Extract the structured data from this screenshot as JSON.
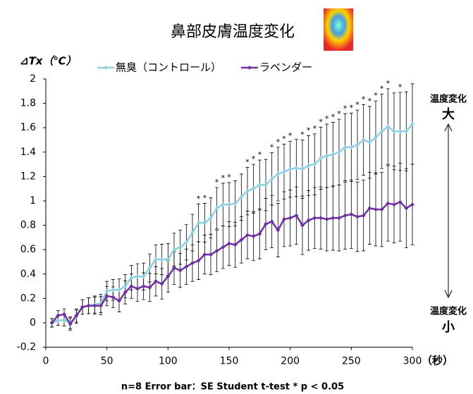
{
  "chart_data": {
    "type": "line",
    "title": "鼻部皮膚温度変化",
    "y_label": "⊿Tx（℃）",
    "x_unit": "（秒）",
    "footnote": "n=8  Error bar：SE    Student t-test * p < 0.05",
    "side_labels": {
      "top": "温度変化",
      "top_big": "大",
      "bottom": "温度変化",
      "bottom_big": "小"
    },
    "x": [
      5,
      10,
      15,
      20,
      25,
      30,
      35,
      40,
      45,
      50,
      55,
      60,
      65,
      70,
      75,
      80,
      85,
      90,
      95,
      100,
      105,
      110,
      115,
      120,
      125,
      130,
      135,
      140,
      145,
      150,
      155,
      160,
      165,
      170,
      175,
      180,
      185,
      190,
      195,
      200,
      205,
      210,
      215,
      220,
      225,
      230,
      235,
      240,
      245,
      250,
      255,
      260,
      265,
      270,
      275,
      280,
      285,
      290,
      295,
      300
    ],
    "series": [
      {
        "name": "無臭（コントロール）",
        "color": "#8fd0e0",
        "values": [
          0,
          0.02,
          0.02,
          0,
          0.05,
          0.13,
          0.14,
          0.15,
          0.16,
          0.26,
          0.27,
          0.27,
          0.3,
          0.37,
          0.38,
          0.38,
          0.45,
          0.52,
          0.52,
          0.52,
          0.6,
          0.62,
          0.66,
          0.74,
          0.82,
          0.82,
          0.86,
          0.94,
          0.97,
          0.97,
          0.98,
          1.03,
          1.08,
          1.1,
          1.13,
          1.13,
          1.18,
          1.22,
          1.24,
          1.26,
          1.27,
          1.26,
          1.29,
          1.3,
          1.35,
          1.37,
          1.38,
          1.4,
          1.44,
          1.44,
          1.46,
          1.5,
          1.48,
          1.52,
          1.57,
          1.61,
          1.57,
          1.57,
          1.57,
          1.63
        ],
        "errors": [
          0.035,
          0.04,
          0.045,
          0.05,
          0.055,
          0.06,
          0.065,
          0.07,
          0.075,
          0.08,
          0.085,
          0.09,
          0.095,
          0.1,
          0.105,
          0.11,
          0.115,
          0.12,
          0.125,
          0.13,
          0.135,
          0.14,
          0.145,
          0.15,
          0.155,
          0.16,
          0.165,
          0.17,
          0.175,
          0.18,
          0.185,
          0.19,
          0.195,
          0.2,
          0.205,
          0.21,
          0.215,
          0.22,
          0.225,
          0.23,
          0.235,
          0.24,
          0.245,
          0.25,
          0.255,
          0.26,
          0.265,
          0.27,
          0.275,
          0.28,
          0.285,
          0.29,
          0.295,
          0.3,
          0.305,
          0.31,
          0.315,
          0.32,
          0.325,
          0.33
        ]
      },
      {
        "name": "ラベンダー",
        "color": "#7030a0",
        "values": [
          0,
          0.06,
          0.07,
          -0.01,
          0.06,
          0.13,
          0.14,
          0.14,
          0.14,
          0.22,
          0.21,
          0.18,
          0.25,
          0.3,
          0.28,
          0.3,
          0.29,
          0.34,
          0.32,
          0.38,
          0.45,
          0.43,
          0.46,
          0.49,
          0.51,
          0.56,
          0.56,
          0.59,
          0.62,
          0.65,
          0.64,
          0.68,
          0.72,
          0.71,
          0.73,
          0.81,
          0.83,
          0.76,
          0.85,
          0.86,
          0.88,
          0.8,
          0.84,
          0.86,
          0.86,
          0.85,
          0.86,
          0.86,
          0.88,
          0.89,
          0.87,
          0.88,
          0.94,
          0.93,
          0.93,
          0.98,
          0.97,
          0.99,
          0.94,
          0.97
        ],
        "errors": [
          0.035,
          0.04,
          0.045,
          0.05,
          0.055,
          0.06,
          0.065,
          0.07,
          0.075,
          0.08,
          0.085,
          0.09,
          0.095,
          0.1,
          0.105,
          0.11,
          0.115,
          0.12,
          0.125,
          0.13,
          0.135,
          0.14,
          0.145,
          0.15,
          0.155,
          0.16,
          0.165,
          0.17,
          0.175,
          0.18,
          0.185,
          0.19,
          0.195,
          0.2,
          0.205,
          0.21,
          0.215,
          0.22,
          0.225,
          0.23,
          0.235,
          0.24,
          0.245,
          0.25,
          0.255,
          0.26,
          0.265,
          0.27,
          0.275,
          0.28,
          0.285,
          0.29,
          0.295,
          0.3,
          0.305,
          0.31,
          0.315,
          0.32,
          0.325,
          0.33
        ]
      }
    ],
    "significance": {
      "marker": "*",
      "x": [
        125,
        130,
        140,
        145,
        150,
        165,
        170,
        175,
        185,
        190,
        195,
        200,
        210,
        215,
        220,
        225,
        230,
        235,
        240,
        245,
        250,
        255,
        260,
        265,
        270,
        275,
        280,
        290
      ]
    },
    "xlim": [
      0,
      300
    ],
    "xticks": [
      0,
      50,
      100,
      150,
      200,
      250,
      300
    ],
    "ylim": [
      -0.2,
      2
    ],
    "yticks": [
      -0.2,
      0,
      0.2,
      0.4,
      0.6,
      0.8,
      1,
      1.2,
      1.4,
      1.6,
      1.8,
      2
    ],
    "grid": false
  }
}
